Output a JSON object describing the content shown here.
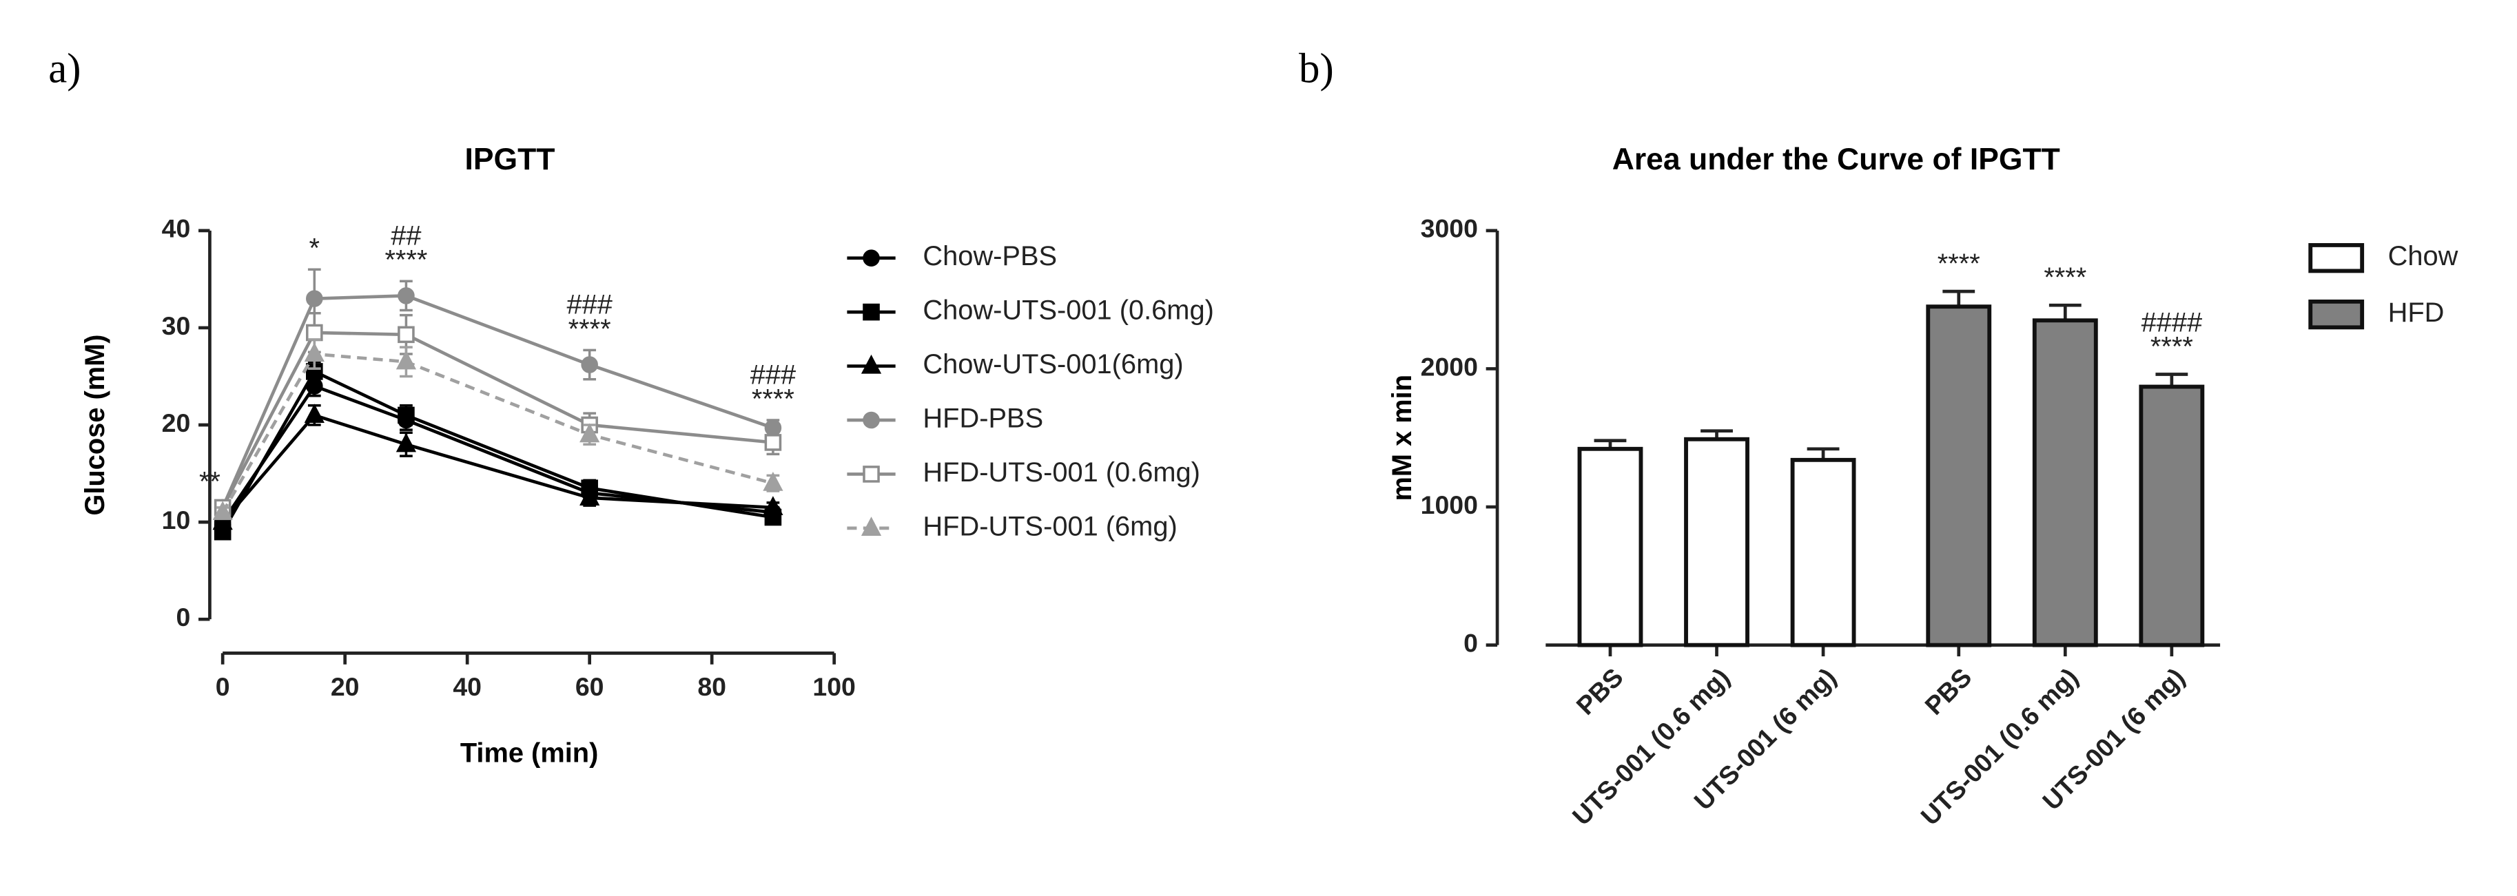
{
  "chart_data": [
    {
      "type": "line",
      "panel": "a)",
      "title": "IPGTT",
      "x_label": "Time (min)",
      "y_label": "Glucose (mM)",
      "x": [
        0,
        15,
        30,
        60,
        90
      ],
      "xlim": [
        0,
        100
      ],
      "xticks": [
        0,
        20,
        40,
        60,
        80,
        100
      ],
      "ylim": [
        0,
        40
      ],
      "yticks": [
        0,
        10,
        20,
        30,
        40
      ],
      "series": [
        {
          "name": "Chow-PBS",
          "color": "#000000",
          "marker": "circle",
          "filled": true,
          "dashed": false,
          "values": [
            10,
            24,
            20.5,
            13,
            11
          ],
          "errors": [
            0.5,
            1,
            1,
            0.8,
            0.5
          ]
        },
        {
          "name": "Chow-UTS-001 (0.6mg)",
          "color": "#000000",
          "marker": "square",
          "filled": true,
          "dashed": false,
          "values": [
            9,
            25.5,
            21,
            13.5,
            10.5
          ],
          "errors": [
            0.5,
            1,
            1,
            0.8,
            0.5
          ]
        },
        {
          "name": "Chow-UTS-001(6mg)",
          "color": "#000000",
          "marker": "triangle",
          "filled": true,
          "dashed": false,
          "values": [
            10,
            21,
            18,
            12.5,
            11.5
          ],
          "errors": [
            0.5,
            1,
            1.2,
            0.8,
            0.5
          ]
        },
        {
          "name": "HFD-PBS",
          "color": "#8c8c8c",
          "marker": "circle",
          "filled": true,
          "dashed": false,
          "values": [
            11.5,
            33,
            33.3,
            26.2,
            19.7
          ],
          "errors": [
            0.5,
            3,
            1.5,
            1.5,
            0.8
          ]
        },
        {
          "name": "HFD-UTS-001 (0.6mg)",
          "color": "#8c8c8c",
          "marker": "square",
          "filled": false,
          "dashed": false,
          "values": [
            11.5,
            29.5,
            29.3,
            20,
            18.2
          ],
          "errors": [
            0.5,
            2,
            2,
            1.2,
            1.2
          ]
        },
        {
          "name": "HFD-UTS-001 (6mg)",
          "color": "#a0a0a0",
          "marker": "triangle",
          "filled": true,
          "dashed": true,
          "values": [
            11,
            27.3,
            26.5,
            19,
            14
          ],
          "errors": [
            0.5,
            1.5,
            1.5,
            1,
            0.8
          ]
        }
      ],
      "annotations": [
        {
          "x": 0,
          "lines": [
            "**"
          ]
        },
        {
          "x": 15,
          "lines": [
            "*"
          ]
        },
        {
          "x": 30,
          "lines": [
            "##",
            "****"
          ]
        },
        {
          "x": 60,
          "lines": [
            "###",
            "****"
          ]
        },
        {
          "x": 90,
          "lines": [
            "###",
            "****"
          ]
        }
      ]
    },
    {
      "type": "bar",
      "panel": "b)",
      "title": "Area under the Curve of IPGTT",
      "y_label": "mM x min",
      "categories": [
        "PBS",
        "UTS-001 (0.6 mg)",
        "UTS-001 (6 mg)",
        "PBS",
        "UTS-001 (0.6 mg)",
        "UTS-001 (6 mg)"
      ],
      "ylim": [
        0,
        3000
      ],
      "yticks": [
        0,
        1000,
        2000,
        3000
      ],
      "series": [
        {
          "name": "Chow",
          "color": "#ffffff",
          "values": [
            1420,
            1490,
            1340,
            null,
            null,
            null
          ],
          "errors": [
            60,
            60,
            80,
            null,
            null,
            null
          ]
        },
        {
          "name": "HFD",
          "color": "#808080",
          "values": [
            null,
            null,
            null,
            2450,
            2350,
            1870
          ],
          "errors": [
            null,
            null,
            null,
            110,
            110,
            90
          ]
        }
      ],
      "annotations": [
        null,
        null,
        null,
        [
          "****"
        ],
        [
          "****"
        ],
        [
          "####",
          "****"
        ]
      ]
    }
  ]
}
